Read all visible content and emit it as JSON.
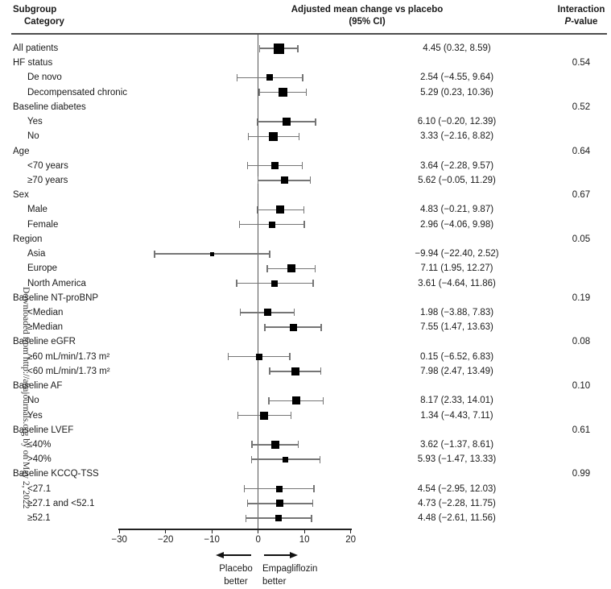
{
  "header": {
    "subgroup_line1": "Subgroup",
    "subgroup_line2": "Category",
    "effect_line1": "Adjusted mean change vs placebo",
    "effect_line2": "(95% CI)",
    "interaction_line1": "Interaction",
    "interaction_p": "P",
    "interaction_suffix": "-value"
  },
  "watermark": "Downloaded from http://ahajournals.org by on May 2, 2022",
  "footer": {
    "left_line1": "Placebo",
    "left_line2": "better",
    "right_line1": "Empagliflozin",
    "right_line2": "better"
  },
  "chart_data": {
    "type": "forest",
    "title": "Adjusted mean change vs placebo (95% CI)",
    "x_axis": {
      "min": -30,
      "max": 20,
      "ticks": [
        -30,
        -20,
        -10,
        0,
        10,
        20
      ],
      "tick_labels": [
        "−30",
        "−20",
        "−10",
        "0",
        "10",
        "20"
      ],
      "reference_line": 0
    },
    "rows": [
      {
        "label": "All patients",
        "indent": 0,
        "estimate": 4.45,
        "ci": [
          0.32,
          8.59
        ],
        "value_text": "4.45 (0.32, 8.59)",
        "p_value": null,
        "marker": 13
      },
      {
        "label": "HF status",
        "indent": 0,
        "estimate": null,
        "ci": null,
        "value_text": null,
        "p_value": "0.54",
        "marker": null
      },
      {
        "label": "De novo",
        "indent": 1,
        "estimate": 2.54,
        "ci": [
          -4.55,
          9.64
        ],
        "value_text": "2.54 (−4.55, 9.64)",
        "p_value": null,
        "marker": 8
      },
      {
        "label": "Decompensated chronic",
        "indent": 1,
        "estimate": 5.29,
        "ci": [
          0.23,
          10.36
        ],
        "value_text": "5.29 (0.23, 10.36)",
        "p_value": null,
        "marker": 11
      },
      {
        "label": "Baseline diabetes",
        "indent": 0,
        "estimate": null,
        "ci": null,
        "value_text": null,
        "p_value": "0.52",
        "marker": null
      },
      {
        "label": "Yes",
        "indent": 1,
        "estimate": 6.1,
        "ci": [
          -0.2,
          12.39
        ],
        "value_text": "6.10 (−0.20, 12.39)",
        "p_value": null,
        "marker": 10
      },
      {
        "label": "No",
        "indent": 1,
        "estimate": 3.33,
        "ci": [
          -2.16,
          8.82
        ],
        "value_text": "3.33 (−2.16, 8.82)",
        "p_value": null,
        "marker": 11
      },
      {
        "label": "Age",
        "indent": 0,
        "estimate": null,
        "ci": null,
        "value_text": null,
        "p_value": "0.64",
        "marker": null
      },
      {
        "label": "<70 years",
        "indent": 1,
        "estimate": 3.64,
        "ci": [
          -2.28,
          9.57
        ],
        "value_text": "3.64 (−2.28, 9.57)",
        "p_value": null,
        "marker": 9
      },
      {
        "label": "≥70 years",
        "indent": 1,
        "estimate": 5.62,
        "ci": [
          -0.05,
          11.29
        ],
        "value_text": "5.62 (−0.05, 11.29)",
        "p_value": null,
        "marker": 9
      },
      {
        "label": "Sex",
        "indent": 0,
        "estimate": null,
        "ci": null,
        "value_text": null,
        "p_value": "0.67",
        "marker": null
      },
      {
        "label": "Male",
        "indent": 1,
        "estimate": 4.83,
        "ci": [
          -0.21,
          9.87
        ],
        "value_text": "4.83 (−0.21, 9.87)",
        "p_value": null,
        "marker": 10
      },
      {
        "label": "Female",
        "indent": 1,
        "estimate": 2.96,
        "ci": [
          -4.06,
          9.98
        ],
        "value_text": "2.96 (−4.06, 9.98)",
        "p_value": null,
        "marker": 8
      },
      {
        "label": "Region",
        "indent": 0,
        "estimate": null,
        "ci": null,
        "value_text": null,
        "p_value": "0.05",
        "marker": null
      },
      {
        "label": "Asia",
        "indent": 1,
        "estimate": -9.94,
        "ci": [
          -22.4,
          2.52
        ],
        "value_text": "−9.94 (−22.40, 2.52)",
        "p_value": null,
        "marker": 5
      },
      {
        "label": "Europe",
        "indent": 1,
        "estimate": 7.11,
        "ci": [
          1.95,
          12.27
        ],
        "value_text": "7.11 (1.95, 12.27)",
        "p_value": null,
        "marker": 10
      },
      {
        "label": "North America",
        "indent": 1,
        "estimate": 3.61,
        "ci": [
          -4.64,
          11.86
        ],
        "value_text": "3.61 (−4.64, 11.86)",
        "p_value": null,
        "marker": 8
      },
      {
        "label": "Baseline NT-proBNP",
        "indent": 0,
        "estimate": null,
        "ci": null,
        "value_text": null,
        "p_value": "0.19",
        "marker": null
      },
      {
        "label": "<Median",
        "indent": 1,
        "estimate": 1.98,
        "ci": [
          -3.88,
          7.83
        ],
        "value_text": "1.98 (−3.88, 7.83)",
        "p_value": null,
        "marker": 9
      },
      {
        "label": "≥Median",
        "indent": 1,
        "estimate": 7.55,
        "ci": [
          1.47,
          13.63
        ],
        "value_text": "7.55 (1.47, 13.63)",
        "p_value": null,
        "marker": 9
      },
      {
        "label": "Baseline eGFR",
        "indent": 0,
        "estimate": null,
        "ci": null,
        "value_text": null,
        "p_value": "0.08",
        "marker": null
      },
      {
        "label": "≥60 mL/min/1.73 m²",
        "indent": 1,
        "estimate": 0.15,
        "ci": [
          -6.52,
          6.83
        ],
        "value_text": "0.15 (−6.52, 6.83)",
        "p_value": null,
        "marker": 8
      },
      {
        "label": "<60 mL/min/1.73 m²",
        "indent": 1,
        "estimate": 7.98,
        "ci": [
          2.47,
          13.49
        ],
        "value_text": "7.98 (2.47, 13.49)",
        "p_value": null,
        "marker": 10
      },
      {
        "label": "Baseline AF",
        "indent": 0,
        "estimate": null,
        "ci": null,
        "value_text": null,
        "p_value": "0.10",
        "marker": null
      },
      {
        "label": "No",
        "indent": 1,
        "estimate": 8.17,
        "ci": [
          2.33,
          14.01
        ],
        "value_text": "8.17 (2.33, 14.01)",
        "p_value": null,
        "marker": 10
      },
      {
        "label": "Yes",
        "indent": 1,
        "estimate": 1.34,
        "ci": [
          -4.43,
          7.11
        ],
        "value_text": "1.34 (−4.43, 7.11)",
        "p_value": null,
        "marker": 10
      },
      {
        "label": "Baseline LVEF",
        "indent": 0,
        "estimate": null,
        "ci": null,
        "value_text": null,
        "p_value": "0.61",
        "marker": null
      },
      {
        "label": "≤40%",
        "indent": 1,
        "estimate": 3.62,
        "ci": [
          -1.37,
          8.61
        ],
        "value_text": "3.62 (−1.37, 8.61)",
        "p_value": null,
        "marker": 10
      },
      {
        "label": ">40%",
        "indent": 1,
        "estimate": 5.93,
        "ci": [
          -1.47,
          13.33
        ],
        "value_text": "5.93 (−1.47, 13.33)",
        "p_value": null,
        "marker": 7
      },
      {
        "label": "Baseline KCCQ-TSS",
        "indent": 0,
        "estimate": null,
        "ci": null,
        "value_text": null,
        "p_value": "0.99",
        "marker": null
      },
      {
        "label": "<27.1",
        "indent": 1,
        "estimate": 4.54,
        "ci": [
          -2.95,
          12.03
        ],
        "value_text": "4.54 (−2.95, 12.03)",
        "p_value": null,
        "marker": 8
      },
      {
        "label": "≥27.1 and <52.1",
        "indent": 1,
        "estimate": 4.73,
        "ci": [
          -2.28,
          11.75
        ],
        "value_text": "4.73 (−2.28, 11.75)",
        "p_value": null,
        "marker": 9
      },
      {
        "label": "≥52.1",
        "indent": 1,
        "estimate": 4.48,
        "ci": [
          -2.61,
          11.56
        ],
        "value_text": "4.48 (−2.61, 11.56)",
        "p_value": null,
        "marker": 8
      }
    ]
  }
}
